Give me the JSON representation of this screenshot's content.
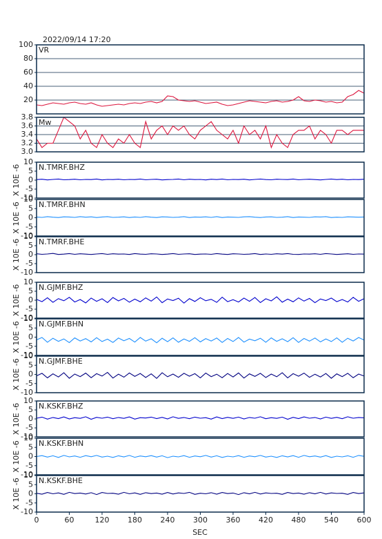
{
  "chart_data": {
    "type": "line",
    "title": "2022/09/14 17:20",
    "xlabel": "SEC",
    "xlim": [
      0,
      600
    ],
    "xticks": [
      0,
      60,
      120,
      180,
      240,
      300,
      360,
      420,
      480,
      540,
      600
    ],
    "x": [
      0,
      10,
      20,
      30,
      40,
      50,
      60,
      70,
      80,
      90,
      100,
      110,
      120,
      130,
      140,
      150,
      160,
      170,
      180,
      190,
      200,
      210,
      220,
      230,
      240,
      250,
      260,
      270,
      280,
      290,
      300,
      310,
      320,
      330,
      340,
      350,
      360,
      370,
      380,
      390,
      400,
      410,
      420,
      430,
      440,
      450,
      460,
      470,
      480,
      490,
      500,
      510,
      520,
      530,
      540,
      550,
      560,
      570,
      580,
      590,
      600
    ],
    "panels": [
      {
        "name": "VR",
        "color": "#dc143c",
        "ylim": [
          0,
          100
        ],
        "yticks": [
          20,
          40,
          60,
          80,
          100
        ],
        "grid": true,
        "values": [
          13,
          12,
          14,
          16,
          15,
          14,
          16,
          17,
          15,
          14,
          16,
          13,
          11,
          12,
          13,
          14,
          13,
          15,
          16,
          15,
          17,
          18,
          16,
          18,
          26,
          25,
          20,
          19,
          18,
          19,
          17,
          15,
          16,
          17,
          14,
          12,
          13,
          15,
          17,
          19,
          18,
          17,
          16,
          18,
          19,
          17,
          18,
          20,
          25,
          19,
          18,
          20,
          19,
          17,
          18,
          16,
          17,
          25,
          28,
          34,
          30
        ]
      },
      {
        "name": "Mw",
        "color": "#dc143c",
        "ylim": [
          3,
          3.8
        ],
        "yticks": [
          {
            "value": 3,
            "label": "3.0"
          },
          3.2,
          3.4,
          3.6,
          3.8
        ],
        "grid": true,
        "values": [
          3.3,
          3.1,
          3.2,
          3.2,
          3.5,
          3.8,
          3.7,
          3.6,
          3.3,
          3.5,
          3.2,
          3.1,
          3.4,
          3.2,
          3.1,
          3.3,
          3.2,
          3.4,
          3.2,
          3.1,
          3.7,
          3.3,
          3.5,
          3.6,
          3.4,
          3.6,
          3.5,
          3.6,
          3.4,
          3.3,
          3.5,
          3.6,
          3.7,
          3.5,
          3.4,
          3.3,
          3.5,
          3.2,
          3.6,
          3.4,
          3.5,
          3.3,
          3.6,
          3.1,
          3.4,
          3.2,
          3.1,
          3.4,
          3.5,
          3.5,
          3.6,
          3.3,
          3.5,
          3.4,
          3.2,
          3.5,
          3.5,
          3.4,
          3.5,
          3.5,
          3.5
        ]
      },
      {
        "name": "N.TMRF.BHZ",
        "color": "#0000cd",
        "ylabel": "X 10E -6",
        "ylim": [
          -10,
          10
        ],
        "yticks": [
          -10,
          -5,
          0,
          5,
          10
        ],
        "values": [
          0.3,
          0.5,
          0.1,
          0.4,
          0.6,
          0.2,
          0.3,
          0.5,
          0.2,
          0.4,
          0.3,
          0.6,
          0.1,
          0.4,
          0.3,
          0.5,
          0.2,
          0.4,
          0.3,
          0.6,
          0.2,
          0.4,
          0.5,
          0.1,
          0.3,
          0.4,
          0.6,
          0.2,
          0.5,
          0.3,
          0.4,
          0.1,
          0.5,
          0.3,
          0.6,
          0.2,
          0.4,
          0.3,
          0.5,
          0.1,
          0.4,
          0.6,
          0.3,
          0.2,
          0.5,
          0.4,
          0.3,
          0.6,
          0.2,
          0.4,
          0.5,
          0.3,
          0.1,
          0.4,
          0.6,
          0.3,
          0.5,
          0.2,
          0.4,
          0.3,
          0.5
        ]
      },
      {
        "name": "N.TMRF.BHN",
        "color": "#1e90ff",
        "ylabel": "X 10E -6",
        "ylim": [
          -10,
          10
        ],
        "yticks": [
          -10,
          -5,
          0,
          5,
          10
        ],
        "values": [
          0.4,
          0.2,
          0.6,
          0.3,
          0.1,
          0.5,
          0.4,
          0.2,
          0.6,
          0.3,
          0.5,
          0.1,
          0.4,
          0.6,
          0.2,
          0.3,
          0.5,
          0.1,
          0.4,
          0.2,
          0.6,
          0.3,
          0.1,
          0.5,
          0.4,
          0.2,
          0.3,
          0.6,
          0.1,
          0.4,
          0.3,
          0.5,
          0.2,
          0.6,
          0.1,
          0.4,
          0.3,
          0.2,
          0.5,
          0.6,
          0.3,
          0.1,
          0.4,
          0.5,
          0.2,
          0.3,
          0.6,
          0.1,
          0.4,
          0.3,
          0.2,
          0.5,
          0.4,
          0.6,
          0.1,
          0.3,
          0.2,
          0.5,
          0.4,
          0.3,
          0.4
        ]
      },
      {
        "name": "N.TMRF.BHE",
        "color": "#000080",
        "ylabel": "X 10E -6",
        "ylim": [
          -10,
          10
        ],
        "yticks": [
          -10,
          -5,
          0,
          5,
          10
        ],
        "values": [
          0.5,
          0.2,
          0.4,
          0.7,
          0.1,
          0.3,
          0.6,
          0.2,
          0.5,
          0.3,
          0.1,
          0.4,
          0.6,
          0.2,
          0.5,
          0.3,
          0.4,
          0.1,
          0.6,
          0.3,
          0.2,
          0.5,
          0.4,
          0.1,
          0.3,
          0.6,
          0.2,
          0.4,
          0.5,
          0.1,
          0.3,
          0.4,
          0.2,
          0.6,
          0.3,
          0.1,
          0.5,
          0.4,
          0.2,
          0.3,
          0.6,
          0.1,
          0.4,
          0.2,
          0.5,
          0.3,
          0.6,
          0.2,
          0.1,
          0.4,
          0.3,
          0.5,
          0.2,
          0.6,
          0.4,
          0.1,
          0.3,
          0.5,
          0.2,
          0.4,
          0.3
        ]
      },
      {
        "name": "N.GJMF.BHZ",
        "color": "#0000cd",
        "ylabel": "X 10E -6",
        "ylim": [
          -10,
          10
        ],
        "yticks": [
          -10,
          -5,
          0,
          5,
          10
        ],
        "values": [
          0.5,
          -0.8,
          1.4,
          -1.2,
          0.9,
          -0.3,
          1.6,
          -1.0,
          0.4,
          -1.5,
          1.2,
          -0.6,
          0.8,
          -1.3,
          1.5,
          -0.4,
          1.0,
          -1.1,
          0.6,
          -0.9,
          1.3,
          -0.5,
          1.8,
          -1.4,
          0.7,
          -0.2,
          1.1,
          -1.6,
          0.9,
          -0.7,
          1.4,
          -0.3,
          0.5,
          -1.2,
          1.7,
          -0.8,
          0.3,
          -1.0,
          1.2,
          -0.6,
          1.5,
          -1.3,
          0.8,
          -0.4,
          1.9,
          -1.1,
          0.6,
          -0.9,
          1.3,
          -0.5,
          1.0,
          -1.4,
          0.7,
          -0.2,
          1.2,
          -0.8,
          0.4,
          -1.0,
          1.6,
          -0.6,
          0.9
        ]
      },
      {
        "name": "N.GJMF.BHN",
        "color": "#1e90ff",
        "ylabel": "X 10E -6",
        "ylim": [
          -10,
          10
        ],
        "yticks": [
          -10,
          -5,
          0,
          5,
          10
        ],
        "values": [
          -1.5,
          -0.2,
          -2.8,
          -0.6,
          -2.3,
          -1.0,
          -3.0,
          -0.4,
          -2.1,
          -0.8,
          -2.6,
          -0.3,
          -2.4,
          -1.1,
          -2.9,
          -0.5,
          -2.0,
          -0.7,
          -2.7,
          -0.2,
          -2.2,
          -0.9,
          -3.1,
          -0.6,
          -2.5,
          -0.4,
          -2.8,
          -1.0,
          -2.3,
          -0.3,
          -2.6,
          -0.8,
          -2.1,
          -0.5,
          -2.9,
          -0.7,
          -2.4,
          -0.2,
          -2.7,
          -1.1,
          -2.0,
          -0.6,
          -2.8,
          -0.4,
          -2.3,
          -0.9,
          -2.5,
          -0.3,
          -2.9,
          -0.7,
          -2.2,
          -0.5,
          -2.6,
          -1.0,
          -2.4,
          -0.4,
          -2.8,
          -0.6,
          -2.1,
          -0.2,
          -1.6
        ]
      },
      {
        "name": "N.GJMF.BHE",
        "color": "#000080",
        "ylabel": "X 10E -6",
        "ylim": [
          -10,
          10
        ],
        "yticks": [
          -10,
          -5,
          0,
          5,
          10
        ],
        "values": [
          -0.8,
          0.6,
          -1.9,
          0.3,
          -1.4,
          0.9,
          -2.1,
          0.2,
          -1.2,
          0.7,
          -1.8,
          0.4,
          -0.9,
          1.1,
          -2.0,
          0.1,
          -1.5,
          0.8,
          -1.1,
          0.5,
          -1.7,
          0.3,
          -2.2,
          0.9,
          -1.3,
          0.2,
          -1.6,
          0.6,
          -1.0,
          0.4,
          -1.9,
          0.7,
          -1.2,
          0.1,
          -1.8,
          0.5,
          -1.4,
          0.8,
          -2.0,
          0.3,
          -1.1,
          0.6,
          -1.7,
          0.2,
          -1.3,
          0.9,
          -1.9,
          0.4,
          -1.0,
          0.7,
          -1.6,
          0.1,
          -1.4,
          0.5,
          -2.1,
          0.3,
          -1.2,
          0.6,
          -1.8,
          0.2,
          -0.9
        ]
      },
      {
        "name": "N.KSKF.BHZ",
        "color": "#0000cd",
        "ylabel": "X 10E -6",
        "ylim": [
          -10,
          10
        ],
        "yticks": [
          -10,
          -5,
          0,
          5,
          10
        ],
        "values": [
          0.4,
          1.0,
          -0.1,
          0.8,
          0.2,
          1.1,
          0.0,
          0.7,
          0.3,
          1.2,
          -0.2,
          0.9,
          0.4,
          1.0,
          0.1,
          0.8,
          0.3,
          1.1,
          -0.1,
          0.7,
          0.5,
          1.0,
          0.2,
          0.9,
          0.0,
          1.2,
          0.3,
          0.8,
          0.1,
          1.0,
          0.4,
          0.7,
          -0.1,
          1.1,
          0.2,
          0.9,
          0.3,
          1.0,
          0.0,
          0.8,
          0.4,
          1.2,
          0.1,
          0.7,
          0.3,
          1.0,
          -0.2,
          0.9,
          0.2,
          1.1,
          0.4,
          0.8,
          0.0,
          1.0,
          0.3,
          0.9,
          0.1,
          1.2,
          0.4,
          0.8,
          0.6
        ]
      },
      {
        "name": "N.KSKF.BHN",
        "color": "#1e90ff",
        "ylabel": "X 10E -6",
        "ylim": [
          -10,
          10
        ],
        "yticks": [
          -10,
          -5,
          0,
          5,
          10
        ],
        "values": [
          0.0,
          0.5,
          -0.3,
          0.4,
          -0.5,
          0.6,
          -0.2,
          0.3,
          -0.4,
          0.5,
          -0.1,
          0.6,
          -0.3,
          0.2,
          -0.5,
          0.4,
          -0.2,
          0.6,
          -0.4,
          0.3,
          -0.1,
          0.5,
          -0.3,
          0.4,
          -0.6,
          0.2,
          -0.2,
          0.5,
          -0.4,
          0.3,
          -0.1,
          0.6,
          -0.3,
          0.4,
          -0.5,
          0.2,
          -0.2,
          0.5,
          -0.4,
          0.3,
          -0.1,
          0.6,
          -0.3,
          0.2,
          -0.5,
          0.4,
          -0.2,
          0.5,
          -0.4,
          0.6,
          -0.1,
          0.3,
          -0.3,
          0.5,
          -0.5,
          0.2,
          -0.2,
          0.4,
          -0.4,
          0.6,
          0.1
        ]
      },
      {
        "name": "N.KSKF.BHE",
        "color": "#000080",
        "ylabel": "X 10E -6",
        "ylim": [
          -10,
          10
        ],
        "yticks": [
          -10,
          -5,
          0,
          5,
          10
        ],
        "values": [
          0.3,
          -0.2,
          0.7,
          0.0,
          0.5,
          -0.3,
          0.8,
          0.1,
          0.4,
          -0.1,
          0.6,
          -0.4,
          0.7,
          0.2,
          0.3,
          -0.2,
          0.8,
          0.0,
          0.5,
          -0.3,
          0.6,
          0.1,
          0.4,
          -0.2,
          0.7,
          -0.1,
          0.5,
          0.2,
          0.8,
          -0.3,
          0.3,
          0.0,
          0.6,
          -0.2,
          0.7,
          0.1,
          0.4,
          -0.4,
          0.6,
          0.0,
          0.8,
          -0.1,
          0.5,
          0.2,
          0.3,
          -0.3,
          0.7,
          0.1,
          0.4,
          -0.2,
          0.6,
          0.0,
          0.8,
          -0.1,
          0.5,
          0.2,
          0.3,
          -0.3,
          0.7,
          0.1,
          0.5
        ]
      }
    ]
  }
}
